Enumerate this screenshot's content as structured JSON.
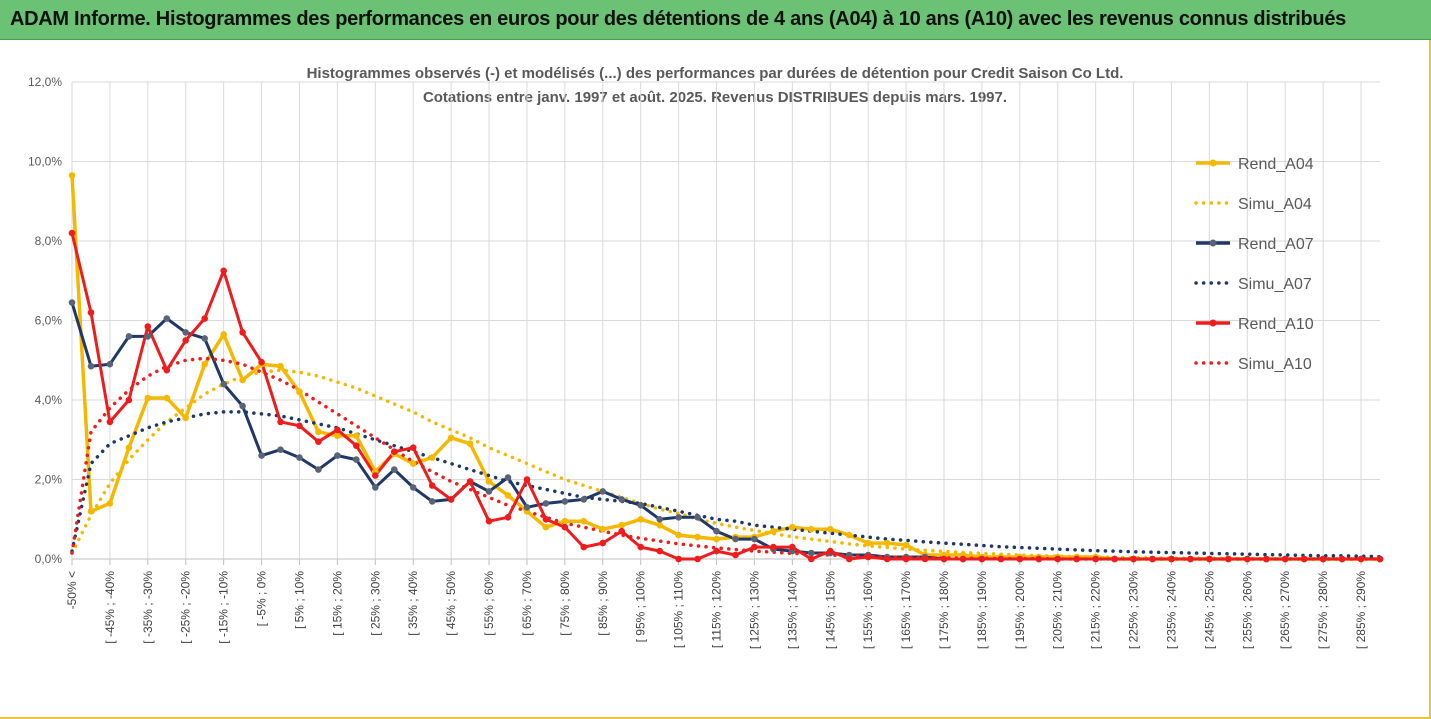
{
  "banner": {
    "title": "ADAM Informe. Histogrammes des performances en euros pour des détentions de 4 ans (A04) à 10 ans (A10) avec les revenus connus distribués"
  },
  "colors": {
    "banner_bg": "#6cc274",
    "A04": "#f5b800",
    "A07": "#1f3868",
    "A10": "#ee1c1c",
    "grid": "#d9d9d9"
  },
  "chart_data": {
    "type": "line",
    "title_lines": [
      "Histogrammes observés (-) et modélisés (...) des performances par durées de détention pour Credit Saison Co Ltd.",
      "Cotations entre janv. 1997 et août. 2025. Revenus DISTRIBUES depuis mars. 1997."
    ],
    "y_ticks": [
      "0,0%",
      "2,0%",
      "4,0%",
      "6,0%",
      "8,0%",
      "10,0%",
      "12,0%"
    ],
    "ylim": [
      0,
      12
    ],
    "x_tick_labels": [
      "-50% <",
      "[ -45% ; -40%",
      "[ -35% ; -30%",
      "[ -25% ; -20%",
      "[ -15% ; -10%",
      "[ -5% ; 0%",
      "[ 5% ; 10%",
      "[ 15% ; 20%",
      "[ 25% ; 30%",
      "[ 35% ; 40%",
      "[ 45% ; 50%",
      "[ 55% ; 60%",
      "[ 65% ; 70%",
      "[ 75% ; 80%",
      "[ 85% ; 90%",
      "[ 95% ; 100%",
      "[ 105% ; 110%",
      "[ 115% ; 120%",
      "[ 125% ; 130%",
      "[ 135% ; 140%",
      "[ 145% ; 150%",
      "[ 155% ; 160%",
      "[ 165% ; 170%",
      "[ 175% ; 180%",
      "[ 185% ; 190%",
      "[ 195% ; 200%",
      "[ 205% ; 210%",
      "[ 215% ; 220%",
      "[ 225% ; 230%",
      "[ 235% ; 240%",
      "[ 245% ; 250%",
      "[ 255% ; 260%",
      "[ 265% ; 270%",
      "[ 275% ; 280%",
      "[ 285% ; 290%"
    ],
    "legend_position": "right",
    "series": [
      {
        "name": "Rend_A04",
        "style": "solid",
        "color": "#f5b800",
        "values": [
          9.65,
          1.2,
          1.4,
          2.8,
          4.05,
          4.05,
          3.55,
          4.9,
          5.65,
          4.5,
          4.9,
          4.85,
          4.2,
          3.2,
          3.1,
          3.1,
          2.2,
          2.65,
          2.4,
          2.55,
          3.05,
          2.9,
          1.95,
          1.6,
          1.2,
          0.8,
          0.95,
          0.95,
          0.75,
          0.85,
          1.0,
          0.85,
          0.6,
          0.55,
          0.5,
          0.55,
          0.55,
          0.7,
          0.8,
          0.75,
          0.75,
          0.6,
          0.4,
          0.4,
          0.35,
          0.1,
          0.1,
          0.1,
          0.05,
          0.05,
          0.05,
          0.05,
          0.05,
          0.05,
          0.05,
          0.0,
          0.0,
          0.0,
          0.0,
          0.0,
          0.0,
          0.0,
          0.0,
          0.0,
          0.0,
          0.0,
          0.0,
          0.0,
          0.0,
          0.0
        ]
      },
      {
        "name": "Simu_A04",
        "style": "dotted",
        "color": "#f5b800",
        "values": [
          0.15,
          1.1,
          1.9,
          2.5,
          3.0,
          3.45,
          3.8,
          4.15,
          4.4,
          4.6,
          4.7,
          4.75,
          4.7,
          4.6,
          4.45,
          4.3,
          4.1,
          3.9,
          3.7,
          3.45,
          3.25,
          3.05,
          2.8,
          2.6,
          2.4,
          2.2,
          2.0,
          1.85,
          1.7,
          1.55,
          1.4,
          1.25,
          1.15,
          1.0,
          0.9,
          0.8,
          0.72,
          0.64,
          0.56,
          0.5,
          0.44,
          0.38,
          0.33,
          0.29,
          0.25,
          0.22,
          0.19,
          0.16,
          0.14,
          0.12,
          0.1,
          0.08,
          0.07,
          0.06,
          0.05,
          0.04,
          0.03,
          0.03,
          0.02,
          0.02,
          0.02,
          0.01,
          0.01,
          0.01,
          0.01,
          0.0,
          0.0,
          0.0,
          0.0,
          0.0
        ]
      },
      {
        "name": "Rend_A07",
        "style": "solid",
        "color": "#1f3868",
        "values": [
          6.45,
          4.85,
          4.9,
          5.6,
          5.6,
          6.05,
          5.7,
          5.55,
          4.4,
          3.85,
          2.6,
          2.75,
          2.55,
          2.25,
          2.6,
          2.5,
          1.8,
          2.25,
          1.8,
          1.45,
          1.5,
          1.95,
          1.7,
          2.05,
          1.3,
          1.4,
          1.45,
          1.5,
          1.7,
          1.5,
          1.35,
          1.0,
          1.05,
          1.05,
          0.7,
          0.5,
          0.5,
          0.25,
          0.2,
          0.15,
          0.15,
          0.1,
          0.1,
          0.05,
          0.05,
          0.05,
          0.0,
          0.0,
          0.0,
          0.0,
          0.0,
          0.0,
          0.0,
          0.0,
          0.0,
          0.0,
          0.0,
          0.0,
          0.0,
          0.0,
          0.0,
          0.0,
          0.0,
          0.0,
          0.0,
          0.0,
          0.0,
          0.0,
          0.0,
          0.0
        ]
      },
      {
        "name": "Simu_A07",
        "style": "dotted",
        "color": "#1f3868",
        "values": [
          0.2,
          2.4,
          2.9,
          3.1,
          3.3,
          3.45,
          3.55,
          3.65,
          3.7,
          3.7,
          3.65,
          3.6,
          3.5,
          3.4,
          3.3,
          3.15,
          3.0,
          2.85,
          2.7,
          2.55,
          2.4,
          2.25,
          2.1,
          1.95,
          1.85,
          1.75,
          1.65,
          1.55,
          1.5,
          1.45,
          1.4,
          1.3,
          1.2,
          1.1,
          1.0,
          0.95,
          0.85,
          0.8,
          0.75,
          0.7,
          0.65,
          0.6,
          0.55,
          0.5,
          0.47,
          0.43,
          0.4,
          0.37,
          0.34,
          0.31,
          0.29,
          0.27,
          0.25,
          0.23,
          0.21,
          0.2,
          0.18,
          0.17,
          0.16,
          0.15,
          0.14,
          0.13,
          0.12,
          0.11,
          0.1,
          0.09,
          0.08,
          0.08,
          0.07,
          0.06
        ]
      },
      {
        "name": "Rend_A10",
        "style": "solid",
        "color": "#ee1c1c",
        "values": [
          8.2,
          6.2,
          3.45,
          4.0,
          5.85,
          4.75,
          5.5,
          6.05,
          7.25,
          5.7,
          4.95,
          3.45,
          3.35,
          2.95,
          3.25,
          2.85,
          2.1,
          2.7,
          2.8,
          1.85,
          1.5,
          1.95,
          0.95,
          1.05,
          2.0,
          1.0,
          0.8,
          0.3,
          0.4,
          0.7,
          0.3,
          0.2,
          0.0,
          0.0,
          0.2,
          0.1,
          0.3,
          0.3,
          0.3,
          0.0,
          0.2,
          0.0,
          0.05,
          0.0,
          0.0,
          0.0,
          0.0,
          0.0,
          0.0,
          0.0,
          0.0,
          0.0,
          0.0,
          0.0,
          0.0,
          0.0,
          0.0,
          0.0,
          0.0,
          0.0,
          0.0,
          0.0,
          0.0,
          0.0,
          0.0,
          0.0,
          0.0,
          0.0,
          0.0,
          0.0
        ]
      },
      {
        "name": "Simu_A10",
        "style": "dotted",
        "color": "#ee1c1c",
        "values": [
          0.15,
          3.2,
          3.8,
          4.25,
          4.6,
          4.85,
          5.0,
          5.05,
          5.0,
          4.9,
          4.7,
          4.5,
          4.25,
          3.95,
          3.65,
          3.35,
          3.05,
          2.75,
          2.45,
          2.2,
          1.95,
          1.75,
          1.55,
          1.35,
          1.2,
          1.05,
          0.9,
          0.8,
          0.7,
          0.6,
          0.52,
          0.45,
          0.38,
          0.33,
          0.28,
          0.24,
          0.2,
          0.17,
          0.14,
          0.12,
          0.1,
          0.08,
          0.07,
          0.05,
          0.04,
          0.03,
          0.03,
          0.02,
          0.02,
          0.01,
          0.01,
          0.01,
          0.0,
          0.0,
          0.0,
          0.0,
          0.0,
          0.0,
          0.0,
          0.0,
          0.0,
          0.0,
          0.0,
          0.0,
          0.0,
          0.0,
          0.0,
          0.0,
          0.0,
          0.0
        ]
      }
    ]
  }
}
